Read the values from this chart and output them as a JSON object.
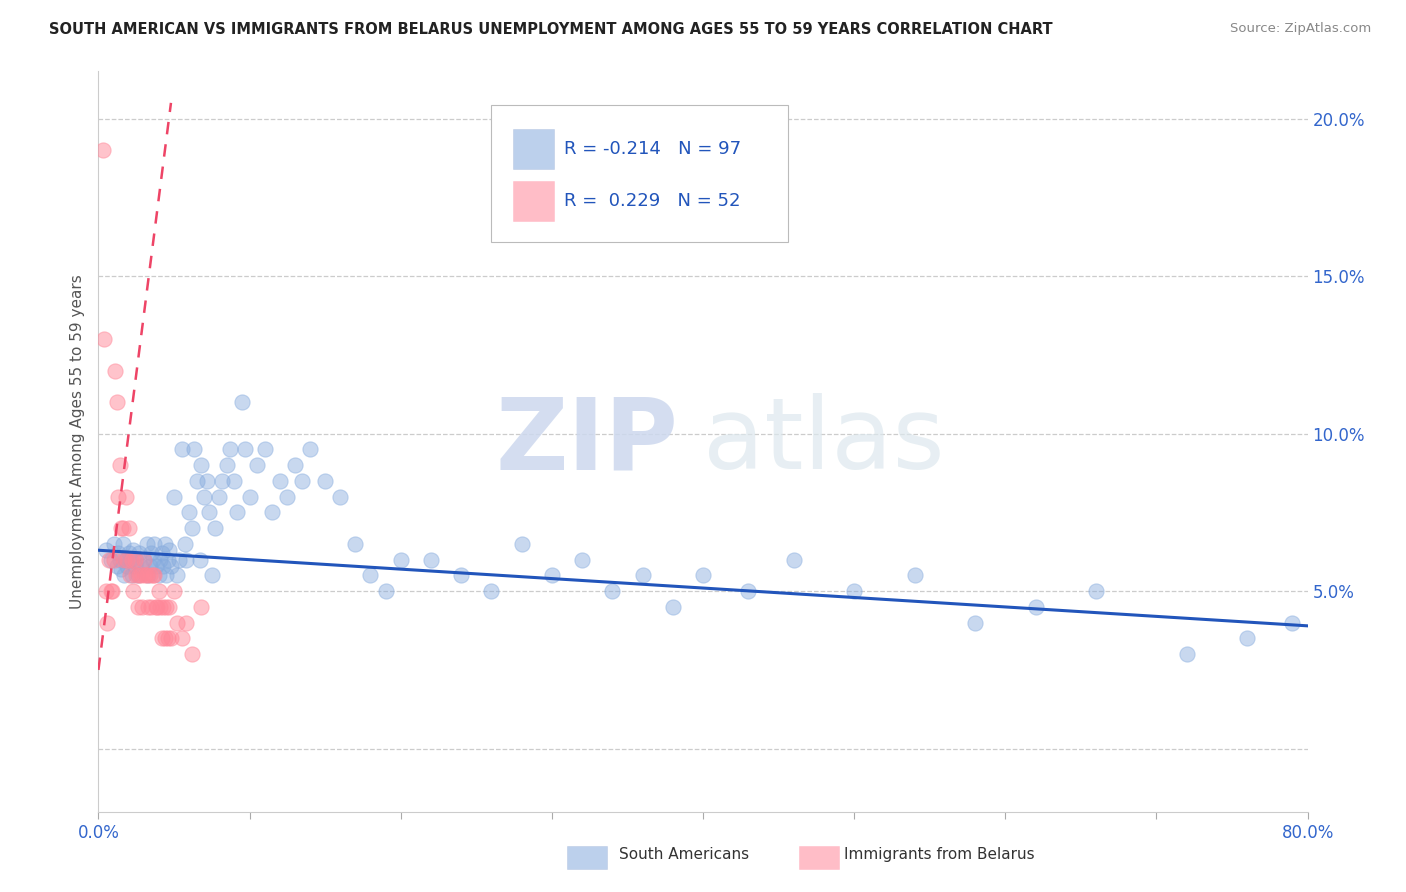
{
  "title": "SOUTH AMERICAN VS IMMIGRANTS FROM BELARUS UNEMPLOYMENT AMONG AGES 55 TO 59 YEARS CORRELATION CHART",
  "source": "Source: ZipAtlas.com",
  "ylabel": "Unemployment Among Ages 55 to 59 years",
  "xlim": [
    0.0,
    0.8
  ],
  "ylim": [
    -0.02,
    0.215
  ],
  "xticks": [
    0.0,
    0.1,
    0.2,
    0.3,
    0.4,
    0.5,
    0.6,
    0.7,
    0.8
  ],
  "xticklabels": [
    "0.0%",
    "",
    "",
    "",
    "",
    "",
    "",
    "",
    "80.0%"
  ],
  "yticks": [
    0.0,
    0.05,
    0.1,
    0.15,
    0.2
  ],
  "yticklabels_right": [
    "",
    "5.0%",
    "10.0%",
    "15.0%",
    "20.0%"
  ],
  "legend_blue_label": "South Americans",
  "legend_pink_label": "Immigrants from Belarus",
  "legend_blue_R": "R = -0.214",
  "legend_blue_N": "N = 97",
  "legend_pink_R": "R =  0.229",
  "legend_pink_N": "N = 52",
  "blue_color": "#85AADD",
  "pink_color": "#FF8899",
  "blue_line_color": "#2255BB",
  "pink_line_color": "#EE4466",
  "watermark_zip": "ZIP",
  "watermark_atlas": "atlas",
  "blue_intercept": 0.063,
  "blue_slope": -0.03,
  "pink_line_x0": 0.0,
  "pink_line_y0": 0.025,
  "pink_line_x1": 0.048,
  "pink_line_y1": 0.205,
  "blue_x": [
    0.005,
    0.008,
    0.01,
    0.012,
    0.013,
    0.014,
    0.015,
    0.016,
    0.017,
    0.018,
    0.019,
    0.02,
    0.021,
    0.022,
    0.023,
    0.024,
    0.025,
    0.026,
    0.027,
    0.028,
    0.03,
    0.032,
    0.033,
    0.034,
    0.035,
    0.036,
    0.037,
    0.038,
    0.04,
    0.041,
    0.042,
    0.043,
    0.044,
    0.045,
    0.046,
    0.047,
    0.048,
    0.05,
    0.052,
    0.053,
    0.055,
    0.057,
    0.058,
    0.06,
    0.062,
    0.063,
    0.065,
    0.067,
    0.068,
    0.07,
    0.072,
    0.073,
    0.075,
    0.077,
    0.08,
    0.082,
    0.085,
    0.087,
    0.09,
    0.092,
    0.095,
    0.097,
    0.1,
    0.105,
    0.11,
    0.115,
    0.12,
    0.125,
    0.13,
    0.135,
    0.14,
    0.15,
    0.16,
    0.17,
    0.18,
    0.19,
    0.2,
    0.22,
    0.24,
    0.26,
    0.28,
    0.3,
    0.32,
    0.34,
    0.36,
    0.38,
    0.4,
    0.43,
    0.46,
    0.5,
    0.54,
    0.58,
    0.62,
    0.66,
    0.72,
    0.76,
    0.79
  ],
  "blue_y": [
    0.063,
    0.06,
    0.065,
    0.058,
    0.062,
    0.06,
    0.057,
    0.065,
    0.055,
    0.06,
    0.058,
    0.062,
    0.06,
    0.055,
    0.063,
    0.058,
    0.06,
    0.055,
    0.062,
    0.058,
    0.06,
    0.065,
    0.055,
    0.058,
    0.062,
    0.06,
    0.065,
    0.058,
    0.055,
    0.06,
    0.062,
    0.058,
    0.065,
    0.055,
    0.06,
    0.063,
    0.058,
    0.08,
    0.055,
    0.06,
    0.095,
    0.065,
    0.06,
    0.075,
    0.07,
    0.095,
    0.085,
    0.06,
    0.09,
    0.08,
    0.085,
    0.075,
    0.055,
    0.07,
    0.08,
    0.085,
    0.09,
    0.095,
    0.085,
    0.075,
    0.11,
    0.095,
    0.08,
    0.09,
    0.095,
    0.075,
    0.085,
    0.08,
    0.09,
    0.085,
    0.095,
    0.085,
    0.08,
    0.065,
    0.055,
    0.05,
    0.06,
    0.06,
    0.055,
    0.05,
    0.065,
    0.055,
    0.06,
    0.05,
    0.055,
    0.045,
    0.055,
    0.05,
    0.06,
    0.05,
    0.055,
    0.04,
    0.045,
    0.05,
    0.03,
    0.035,
    0.04
  ],
  "pink_x": [
    0.003,
    0.004,
    0.005,
    0.006,
    0.007,
    0.008,
    0.009,
    0.01,
    0.011,
    0.012,
    0.013,
    0.014,
    0.015,
    0.016,
    0.017,
    0.018,
    0.019,
    0.02,
    0.021,
    0.022,
    0.023,
    0.024,
    0.025,
    0.026,
    0.027,
    0.028,
    0.029,
    0.03,
    0.031,
    0.032,
    0.033,
    0.034,
    0.035,
    0.036,
    0.037,
    0.038,
    0.039,
    0.04,
    0.041,
    0.042,
    0.043,
    0.044,
    0.045,
    0.046,
    0.047,
    0.048,
    0.05,
    0.052,
    0.055,
    0.058,
    0.062,
    0.068
  ],
  "pink_y": [
    0.19,
    0.13,
    0.05,
    0.04,
    0.06,
    0.05,
    0.05,
    0.06,
    0.12,
    0.11,
    0.08,
    0.09,
    0.07,
    0.07,
    0.06,
    0.08,
    0.06,
    0.07,
    0.055,
    0.06,
    0.05,
    0.06,
    0.055,
    0.045,
    0.055,
    0.055,
    0.045,
    0.06,
    0.055,
    0.055,
    0.045,
    0.055,
    0.045,
    0.055,
    0.055,
    0.045,
    0.045,
    0.05,
    0.045,
    0.035,
    0.045,
    0.035,
    0.045,
    0.035,
    0.045,
    0.035,
    0.05,
    0.04,
    0.035,
    0.04,
    0.03,
    0.045
  ]
}
